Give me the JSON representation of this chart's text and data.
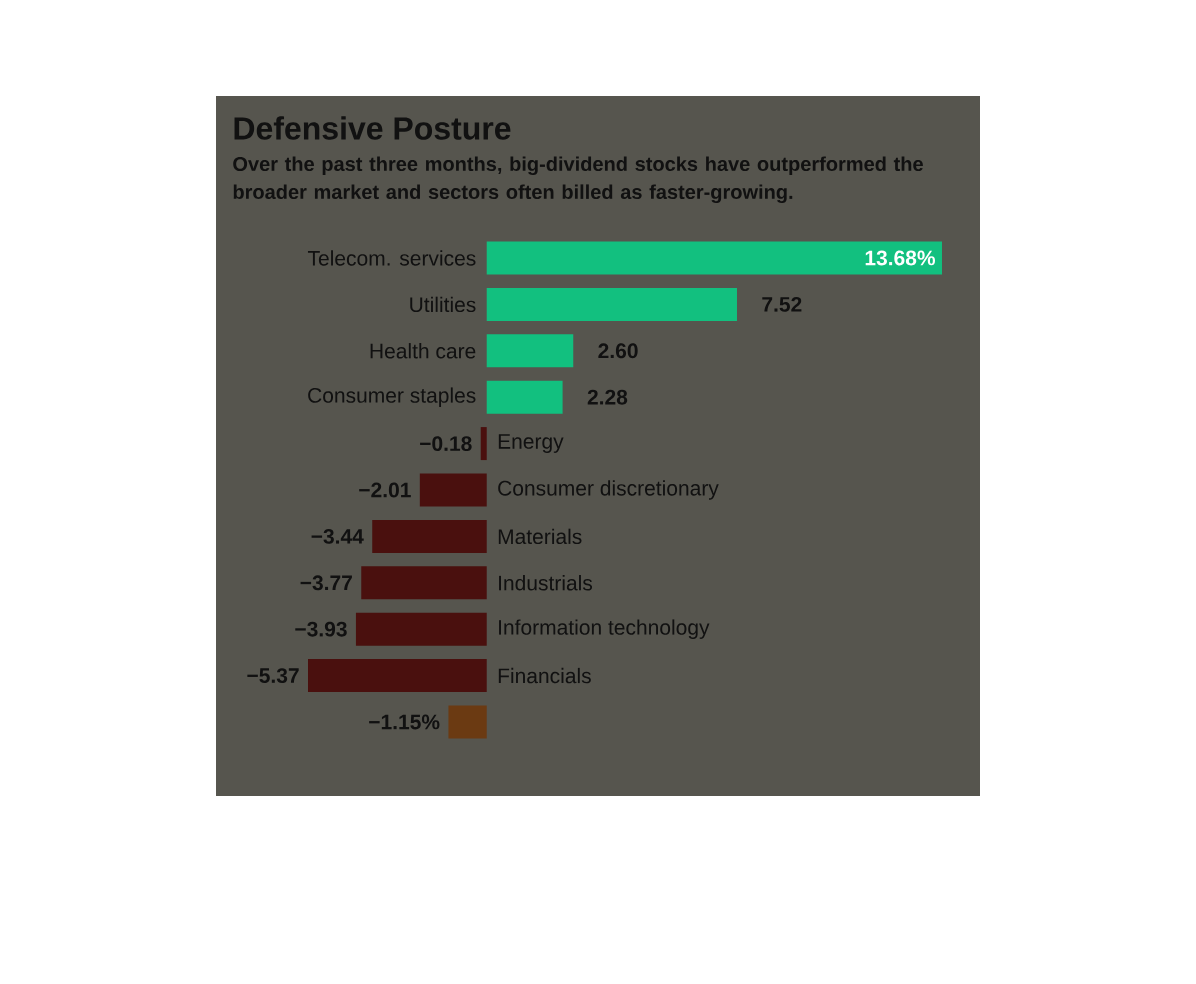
{
  "chart_data": {
    "type": "bar",
    "orientation": "horizontal",
    "title": "Defensive Posture",
    "subtitle": "Over the past three months, big-dividend stocks have outperformed the broader market and sectors often billed as faster-growing.",
    "categories": [
      "Telecom. services",
      "Utilities",
      "Health care",
      "Consumer staples",
      "Energy",
      "Consumer discretionary",
      "Materials",
      "Industrials",
      "Information technology",
      "Financials",
      null
    ],
    "values": [
      13.68,
      7.52,
      2.6,
      2.28,
      -0.18,
      -2.01,
      -3.44,
      -3.77,
      -3.93,
      -5.37,
      -1.15
    ],
    "colors": [
      "#12c07f",
      "#12c07f",
      "#12c07f",
      "#12c07f",
      "#4a100e",
      "#4a100e",
      "#4a100e",
      "#4a100e",
      "#4a100e",
      "#4a100e",
      "#6b3a12"
    ],
    "value_labels": [
      "13.68%",
      "7.52",
      "2.60",
      "2.28",
      "−0.18",
      "−2.01",
      "−3.44",
      "−3.77",
      "−3.93",
      "−5.37",
      "−1.15%"
    ]
  }
}
